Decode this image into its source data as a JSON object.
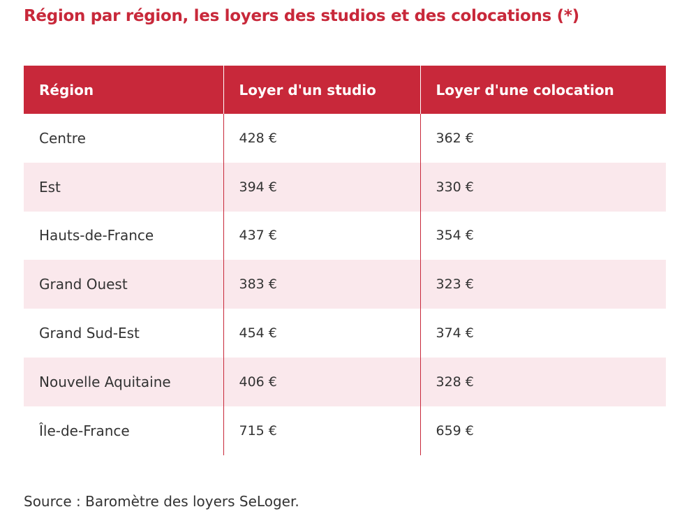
{
  "title": "Région par région, les loyers des studios et des colocations (*)",
  "table": {
    "header": [
      "Région",
      "Loyer d'un studio",
      "Loyer d'une colocation"
    ],
    "rows": [
      [
        "Centre",
        "428 €",
        "362 €"
      ],
      [
        "Est",
        "394 €",
        "330 €"
      ],
      [
        "Hauts-de-France",
        "437 €",
        "354 €"
      ],
      [
        "Grand Ouest",
        "383 €",
        "323 €"
      ],
      [
        "Grand Sud-Est",
        "454 €",
        "374 €"
      ],
      [
        "Nouvelle Aquitaine",
        "406 €",
        "328 €"
      ],
      [
        "Île-de-France",
        "715 €",
        "659 €"
      ]
    ]
  },
  "source": "Source : Baromètre des loyers SeLoger."
}
